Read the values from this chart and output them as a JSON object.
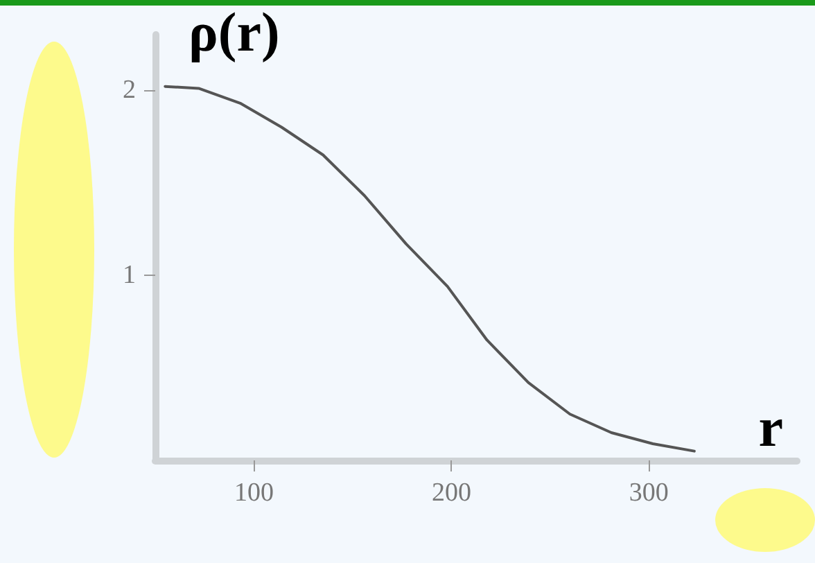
{
  "chart_data": {
    "type": "line",
    "ylabel": "ρ(r)",
    "xlabel": "r",
    "series": [
      {
        "color": "#555555",
        "x": [
          55,
          72,
          93,
          114,
          135,
          156,
          177,
          198,
          218,
          239,
          260,
          281,
          302,
          323
        ],
        "values": [
          2.02,
          2.01,
          1.93,
          1.8,
          1.65,
          1.43,
          1.17,
          0.94,
          0.65,
          0.42,
          0.25,
          0.15,
          0.09,
          0.05
        ]
      }
    ],
    "xlim": [
      50,
      375
    ],
    "xticks": [
      100,
      200,
      300
    ],
    "ylim": [
      0,
      2.3
    ],
    "yticks": [
      1,
      2
    ],
    "grid": false,
    "marker": "none",
    "line_style": "solid"
  }
}
